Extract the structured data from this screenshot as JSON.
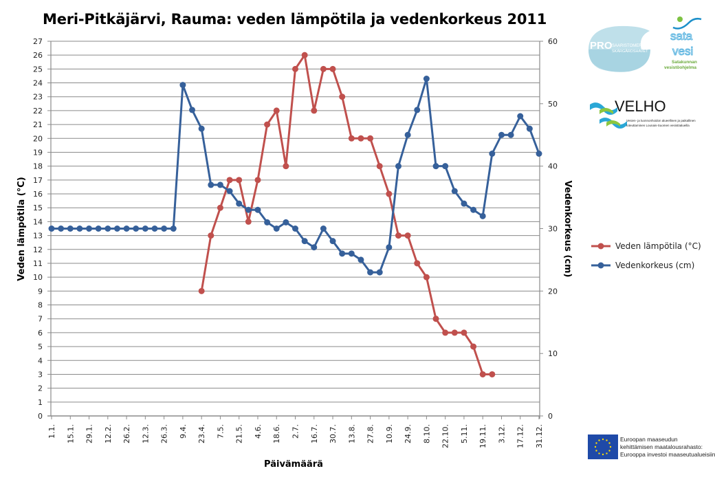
{
  "chart_data": {
    "type": "line",
    "title": "Meri-Pitkäjärvi, Rauma: veden lämpötila ja vedenkorkeus 2011",
    "xlabel": "Päivämäärä",
    "ylabel_left": "Veden lämpötila (°C)",
    "ylabel_right": "Vedenkorkeus (cm)",
    "ylim_left": [
      0,
      27
    ],
    "ylim_right": [
      0,
      60
    ],
    "yticks_left": [
      "0",
      "1",
      "2",
      "3",
      "4",
      "5",
      "6",
      "7",
      "8",
      "9",
      "10",
      "11",
      "12",
      "13",
      "14",
      "15",
      "16",
      "17",
      "18",
      "19",
      "20",
      "21",
      "22",
      "23",
      "24",
      "25",
      "26",
      "27"
    ],
    "yticks_right": [
      "0",
      "10",
      "20",
      "30",
      "40",
      "50",
      "60"
    ],
    "xticks": [
      "1.1.",
      "15.1.",
      "29.1.",
      "12.2.",
      "26.2.",
      "12.3.",
      "26.3.",
      "9.4.",
      "23.4.",
      "7.5.",
      "21.5.",
      "4.6.",
      "18.6.",
      "2.7.",
      "16.7.",
      "30.7.",
      "13.8.",
      "27.8.",
      "10.9.",
      "24.9.",
      "8.10.",
      "22.10.",
      "5.11.",
      "19.11.",
      "3.12.",
      "17.12.",
      "31.12."
    ],
    "grid": true,
    "legend_position": "right",
    "series": [
      {
        "name": "Veden lämpötila (°C)",
        "axis": "left",
        "color": "#C0504D",
        "day_of_year": [
          112,
          119,
          126,
          133,
          140,
          147,
          154,
          161,
          168,
          175,
          182,
          189,
          196,
          203,
          210,
          217,
          224,
          231,
          238,
          245,
          252,
          259,
          266,
          273,
          280,
          287,
          294,
          301,
          308,
          315,
          322,
          329
        ],
        "values": [
          9,
          13,
          15,
          17,
          17,
          14,
          17,
          21,
          22,
          18,
          25,
          26,
          22,
          25,
          25,
          23,
          20,
          20,
          20,
          18,
          16,
          13,
          13,
          11,
          10,
          7,
          6,
          6,
          6,
          5,
          3,
          3
        ]
      },
      {
        "name": "Vedenkorkeus (cm)",
        "axis": "right",
        "color": "#36609A",
        "day_of_year": [
          0,
          7,
          14,
          21,
          28,
          35,
          42,
          49,
          56,
          63,
          70,
          77,
          84,
          91,
          98,
          105,
          112,
          119,
          126,
          133,
          140,
          147,
          154,
          161,
          168,
          175,
          182,
          189,
          196,
          203,
          210,
          217,
          224,
          231,
          238,
          245,
          252,
          259,
          266,
          273,
          280,
          287,
          294,
          301,
          308,
          315,
          322,
          329,
          336,
          343,
          350,
          357,
          364
        ],
        "values": [
          30,
          30,
          30,
          30,
          30,
          30,
          30,
          30,
          30,
          30,
          30,
          30,
          30,
          30,
          53,
          49,
          46,
          37,
          37,
          36,
          34,
          33,
          33,
          31,
          30,
          31,
          30,
          28,
          27,
          30,
          28,
          26,
          26,
          25,
          23,
          23,
          27,
          40,
          45,
          49,
          54,
          40,
          40,
          36,
          34,
          33,
          32,
          42,
          45,
          45,
          48,
          46,
          42
        ]
      }
    ]
  },
  "logos": {
    "pro_saaristomeri": [
      "PRO",
      "SAARISTOMERI",
      "SKÄRGÅRDSHAVET"
    ],
    "sata_vesi": [
      "sata",
      "vesi",
      "Satakunnan",
      "vesistöohjelma"
    ],
    "velho": [
      "VELHO",
      "Vesien- ja luonnonhoidon alueellinen ja paikallinen",
      "toteuttaminen Lounais-Suomen vesistöalueilla"
    ],
    "eu": [
      "Euroopan maaseudun",
      "kehittämisen maatalousrahasto:",
      "Eurooppa investoi maaseutualueisiin"
    ]
  }
}
